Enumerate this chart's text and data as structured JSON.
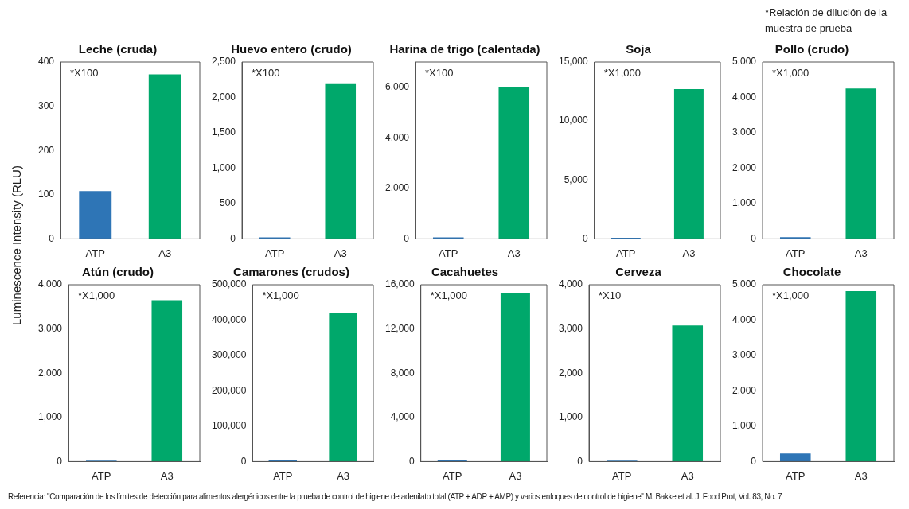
{
  "chart_data": [
    {
      "type": "bar",
      "title": "Leche (cruda)",
      "ylabel": "Luminescence Intensity (RLU)",
      "categories": [
        "ATP",
        "A3"
      ],
      "values": [
        108,
        372
      ],
      "colors": [
        "#2e75b6",
        "#00a86b"
      ],
      "ylim": [
        0,
        400
      ],
      "yticks": [
        0,
        100,
        200,
        300,
        400
      ],
      "annotations": [
        "*X100"
      ]
    },
    {
      "type": "bar",
      "title": "Huevo entero (crudo)",
      "categories": [
        "ATP",
        "A3"
      ],
      "values": [
        20,
        2200
      ],
      "colors": [
        "#2e75b6",
        "#00a86b"
      ],
      "ylim": [
        0,
        2500
      ],
      "yticks": [
        0,
        500,
        {
          "value": 1000,
          "label": "1,000"
        },
        {
          "value": 1500,
          "label": "1,500"
        },
        {
          "value": 2000,
          "label": "2,000"
        },
        {
          "value": 2500,
          "label": "2,500"
        }
      ],
      "annotations": [
        "*X100"
      ]
    },
    {
      "type": "bar",
      "title": "Harina de trigo (calentada)",
      "categories": [
        "ATP",
        "A3"
      ],
      "values": [
        60,
        6000
      ],
      "colors": [
        "#2e75b6",
        "#00a86b"
      ],
      "ylim": [
        0,
        7000
      ],
      "yticks": [
        0,
        {
          "value": 2000,
          "label": "2,000"
        },
        {
          "value": 4000,
          "label": "4,000"
        },
        {
          "value": 6000,
          "label": "6,000"
        }
      ],
      "annotations": [
        "*X100"
      ]
    },
    {
      "type": "bar",
      "title": "Soja",
      "categories": [
        "ATP",
        "A3"
      ],
      "values": [
        100,
        12700
      ],
      "colors": [
        "#2e75b6",
        "#00a86b"
      ],
      "ylim": [
        0,
        15000
      ],
      "yticks": [
        0,
        {
          "value": 5000,
          "label": "5,000"
        },
        {
          "value": 10000,
          "label": "10,000"
        },
        {
          "value": 15000,
          "label": "15,000"
        }
      ],
      "annotations": [
        "*X1,000"
      ]
    },
    {
      "type": "bar",
      "title": "Pollo (crudo)",
      "categories": [
        "ATP",
        "A3"
      ],
      "values": [
        50,
        4250
      ],
      "colors": [
        "#2e75b6",
        "#00a86b"
      ],
      "ylim": [
        0,
        5000
      ],
      "yticks": [
        0,
        {
          "value": 1000,
          "label": "1,000"
        },
        {
          "value": 2000,
          "label": "2,000"
        },
        {
          "value": 3000,
          "label": "3,000"
        },
        {
          "value": 4000,
          "label": "4,000"
        },
        {
          "value": 5000,
          "label": "5,000"
        }
      ],
      "annotations": [
        "*X1,000",
        "*Relación de dilución de la muestra de prueba"
      ]
    },
    {
      "type": "bar",
      "title": "Atún (crudo)",
      "categories": [
        "ATP",
        "A3"
      ],
      "values": [
        20,
        3650
      ],
      "colors": [
        "#2e75b6",
        "#00a86b"
      ],
      "ylim": [
        0,
        4000
      ],
      "yticks": [
        0,
        {
          "value": 1000,
          "label": "1,000"
        },
        {
          "value": 2000,
          "label": "2,000"
        },
        {
          "value": 3000,
          "label": "3,000"
        },
        {
          "value": 4000,
          "label": "4,000"
        }
      ],
      "annotations": [
        "*X1,000"
      ]
    },
    {
      "type": "bar",
      "title": "Camarones (crudos)",
      "categories": [
        "ATP",
        "A3"
      ],
      "values": [
        3000,
        420000
      ],
      "colors": [
        "#2e75b6",
        "#00a86b"
      ],
      "ylim": [
        0,
        500000
      ],
      "yticks": [
        0,
        {
          "value": 100000,
          "label": "100,000"
        },
        {
          "value": 200000,
          "label": "200,000"
        },
        {
          "value": 300000,
          "label": "300,000"
        },
        {
          "value": 400000,
          "label": "400,000"
        },
        {
          "value": 500000,
          "label": "500,000"
        }
      ],
      "annotations": [
        "*X1,000"
      ]
    },
    {
      "type": "bar",
      "title": "Cacahuetes",
      "categories": [
        "ATP",
        "A3"
      ],
      "values": [
        100,
        15200
      ],
      "colors": [
        "#2e75b6",
        "#00a86b"
      ],
      "ylim": [
        0,
        16000
      ],
      "yticks": [
        0,
        {
          "value": 4000,
          "label": "4,000"
        },
        {
          "value": 8000,
          "label": "8,000"
        },
        {
          "value": 12000,
          "label": "12,000"
        },
        {
          "value": 16000,
          "label": "16,000"
        }
      ],
      "annotations": [
        "*X1,000"
      ]
    },
    {
      "type": "bar",
      "title": "Cerveza",
      "categories": [
        "ATP",
        "A3"
      ],
      "values": [
        20,
        3080
      ],
      "colors": [
        "#2e75b6",
        "#00a86b"
      ],
      "ylim": [
        0,
        4000
      ],
      "yticks": [
        0,
        {
          "value": 1000,
          "label": "1,000"
        },
        {
          "value": 2000,
          "label": "2,000"
        },
        {
          "value": 3000,
          "label": "3,000"
        },
        {
          "value": 4000,
          "label": "4,000"
        }
      ],
      "annotations": [
        "*X10"
      ]
    },
    {
      "type": "bar",
      "title": "Chocolate",
      "categories": [
        "ATP",
        "A3"
      ],
      "values": [
        230,
        4820
      ],
      "colors": [
        "#2e75b6",
        "#00a86b"
      ],
      "ylim": [
        0,
        5000
      ],
      "yticks": [
        0,
        {
          "value": 1000,
          "label": "1,000"
        },
        {
          "value": 2000,
          "label": "2,000"
        },
        {
          "value": 3000,
          "label": "3,000"
        },
        {
          "value": 4000,
          "label": "4,000"
        },
        {
          "value": 5000,
          "label": "5,000"
        }
      ],
      "annotations": [
        "*X1,000",
        "Referencia: \"Comparación de los límites de detección para alimentos alergénicos entre la prueba de control de higiene de adenilato total (ATP + ADP + AMP) y varios enfoques de control de higiene\" M. Bakke et al. J. Food Prot, Vol. 83, No. 7"
      ]
    }
  ]
}
